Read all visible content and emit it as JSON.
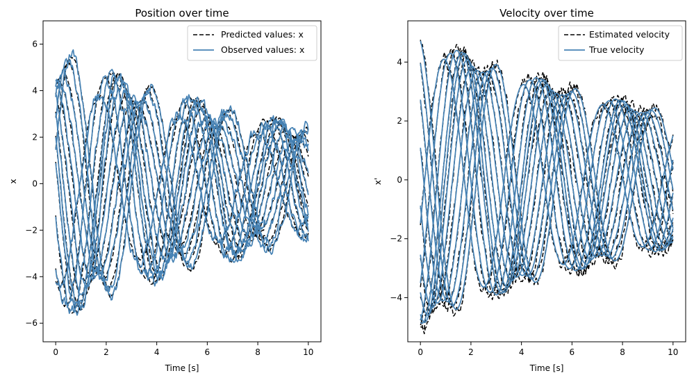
{
  "figure": {
    "background": "#ffffff"
  },
  "colors": {
    "predicted": "#000000",
    "observed": "#4682b4"
  },
  "chart_data": [
    {
      "type": "line",
      "id": "left",
      "title": "Position over time",
      "xlabel": "Time [s]",
      "ylabel": "x",
      "xlim": [
        -0.5,
        10.5
      ],
      "ylim": [
        -6.8,
        7.0
      ],
      "xticks": [
        0,
        2,
        4,
        6,
        8,
        10
      ],
      "yticks": [
        -6,
        -4,
        -2,
        0,
        2,
        4,
        6
      ],
      "legend": {
        "placement": "top-right",
        "entries": [
          "Predicted values: x",
          "Observed values: x"
        ]
      },
      "series": [
        {
          "name": "Predicted values: x",
          "style": "dashed",
          "color": "#000000",
          "trajectories": [
            {
              "A": 5.8,
              "phase": 1.4,
              "noise": 0.2,
              "seed": 1
            },
            {
              "A": 5.8,
              "phase": 1.2,
              "noise": 0.2,
              "seed": 2
            },
            {
              "A": 5.4,
              "phase": 0.95,
              "noise": 0.2,
              "seed": 3
            },
            {
              "A": 4.8,
              "phase": 0.6,
              "noise": 0.2,
              "seed": 4
            },
            {
              "A": 4.6,
              "phase": 0.2,
              "noise": 0.2,
              "seed": 5
            },
            {
              "A": 4.4,
              "phase": -0.25,
              "noise": 0.2,
              "seed": 6
            },
            {
              "A": 4.8,
              "phase": -0.65,
              "noise": 0.2,
              "seed": 7
            },
            {
              "A": 5.4,
              "phase": -1.0,
              "noise": 0.2,
              "seed": 8
            },
            {
              "A": 5.8,
              "phase": -1.3,
              "noise": 0.2,
              "seed": 9
            },
            {
              "A": 5.8,
              "phase": 1.8,
              "noise": 0.2,
              "seed": 10
            },
            {
              "A": 5.4,
              "phase": 2.3,
              "noise": 0.2,
              "seed": 11
            },
            {
              "A": 4.4,
              "phase": 2.8,
              "noise": 0.2,
              "seed": 12
            }
          ]
        },
        {
          "name": "Observed values: x",
          "style": "solid",
          "color": "#4682b4",
          "trajectories": [
            {
              "A": 5.8,
              "phase": 1.4,
              "noise": 0.45,
              "seed": 101
            },
            {
              "A": 5.8,
              "phase": 1.2,
              "noise": 0.45,
              "seed": 102
            },
            {
              "A": 5.4,
              "phase": 0.95,
              "noise": 0.45,
              "seed": 103
            },
            {
              "A": 4.8,
              "phase": 0.6,
              "noise": 0.45,
              "seed": 104
            },
            {
              "A": 4.6,
              "phase": 0.2,
              "noise": 0.45,
              "seed": 105
            },
            {
              "A": 4.4,
              "phase": -0.25,
              "noise": 0.45,
              "seed": 106
            },
            {
              "A": 4.8,
              "phase": -0.65,
              "noise": 0.45,
              "seed": 107
            },
            {
              "A": 5.4,
              "phase": -1.0,
              "noise": 0.45,
              "seed": 108
            },
            {
              "A": 5.8,
              "phase": -1.3,
              "noise": 0.45,
              "seed": 109
            },
            {
              "A": 5.8,
              "phase": 1.8,
              "noise": 0.45,
              "seed": 110
            },
            {
              "A": 5.4,
              "phase": 2.3,
              "noise": 0.45,
              "seed": 111
            },
            {
              "A": 4.4,
              "phase": 2.8,
              "noise": 0.45,
              "seed": 112
            }
          ]
        }
      ]
    },
    {
      "type": "line",
      "id": "right",
      "title": "Velocity over time",
      "xlabel": "Time [s]",
      "ylabel": "x'",
      "xlim": [
        -0.5,
        10.5
      ],
      "ylim": [
        -5.5,
        5.4
      ],
      "xticks": [
        0,
        2,
        4,
        6,
        8,
        10
      ],
      "yticks": [
        -4,
        -2,
        0,
        2,
        4
      ],
      "legend": {
        "placement": "top-right",
        "entries": [
          "Estimated velocity",
          "True velocity"
        ]
      },
      "series": [
        {
          "name": "Estimated velocity",
          "style": "dashed",
          "color": "#000000",
          "trajectories": [
            {
              "A": 5.0,
              "phase": 1.4,
              "noise": 0.35,
              "seed": 201
            },
            {
              "A": 5.0,
              "phase": 1.2,
              "noise": 0.35,
              "seed": 202
            },
            {
              "A": 4.8,
              "phase": 0.95,
              "noise": 0.35,
              "seed": 203
            },
            {
              "A": 4.6,
              "phase": 0.6,
              "noise": 0.35,
              "seed": 204
            },
            {
              "A": 4.4,
              "phase": 0.2,
              "noise": 0.35,
              "seed": 205
            },
            {
              "A": 4.4,
              "phase": -0.25,
              "noise": 0.35,
              "seed": 206
            },
            {
              "A": 4.6,
              "phase": -0.65,
              "noise": 0.35,
              "seed": 207
            },
            {
              "A": 4.8,
              "phase": -1.0,
              "noise": 0.35,
              "seed": 208
            },
            {
              "A": 5.0,
              "phase": -1.3,
              "noise": 0.35,
              "seed": 209
            },
            {
              "A": 5.0,
              "phase": 1.8,
              "noise": 0.35,
              "seed": 210
            },
            {
              "A": 4.8,
              "phase": 2.3,
              "noise": 0.35,
              "seed": 211
            },
            {
              "A": 4.4,
              "phase": 2.8,
              "noise": 0.35,
              "seed": 212
            }
          ]
        },
        {
          "name": "True velocity",
          "style": "solid",
          "color": "#4682b4",
          "trajectories": [
            {
              "A": 4.9,
              "phase": 1.4,
              "noise": 0.0,
              "seed": 301
            },
            {
              "A": 4.9,
              "phase": 1.2,
              "noise": 0.0,
              "seed": 302
            },
            {
              "A": 4.7,
              "phase": 0.95,
              "noise": 0.0,
              "seed": 303
            },
            {
              "A": 4.5,
              "phase": 0.6,
              "noise": 0.0,
              "seed": 304
            },
            {
              "A": 4.4,
              "phase": 0.2,
              "noise": 0.0,
              "seed": 305
            },
            {
              "A": 4.4,
              "phase": -0.25,
              "noise": 0.0,
              "seed": 306
            },
            {
              "A": 4.5,
              "phase": -0.65,
              "noise": 0.0,
              "seed": 307
            },
            {
              "A": 4.7,
              "phase": -1.0,
              "noise": 0.0,
              "seed": 308
            },
            {
              "A": 4.9,
              "phase": -1.3,
              "noise": 0.0,
              "seed": 309
            },
            {
              "A": 4.9,
              "phase": 1.8,
              "noise": 0.0,
              "seed": 310
            },
            {
              "A": 4.7,
              "phase": 2.3,
              "noise": 0.0,
              "seed": 311
            },
            {
              "A": 4.4,
              "phase": 2.8,
              "noise": 0.0,
              "seed": 312
            }
          ]
        }
      ]
    }
  ]
}
